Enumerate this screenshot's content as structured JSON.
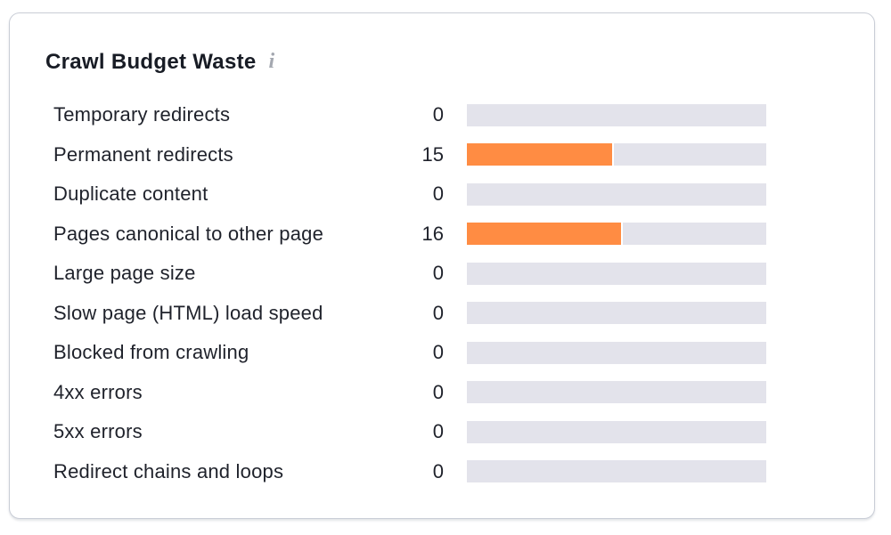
{
  "card": {
    "title": "Crawl Budget Waste",
    "info_icon": "i"
  },
  "colors": {
    "bar_fill": "#FF8C43",
    "bar_track": "#E3E3EB",
    "card_border": "#C9CDD6",
    "title_text": "#181C25",
    "label_text": "#1F222B",
    "info_icon": "#A4A8B0"
  },
  "chart_data": {
    "type": "bar",
    "orientation": "horizontal",
    "title": "Crawl Budget Waste",
    "categories": [
      "Temporary redirects",
      "Permanent redirects",
      "Duplicate content",
      "Pages canonical to other page",
      "Large page size",
      "Slow page (HTML) load speed",
      "Blocked from crawling",
      "4xx errors",
      "5xx errors",
      "Redirect chains and loops"
    ],
    "values": [
      0,
      15,
      0,
      16,
      0,
      0,
      0,
      0,
      0,
      0
    ],
    "xlim": [
      0,
      31
    ],
    "grid": false,
    "legend": false,
    "value_labels_shown": true
  }
}
